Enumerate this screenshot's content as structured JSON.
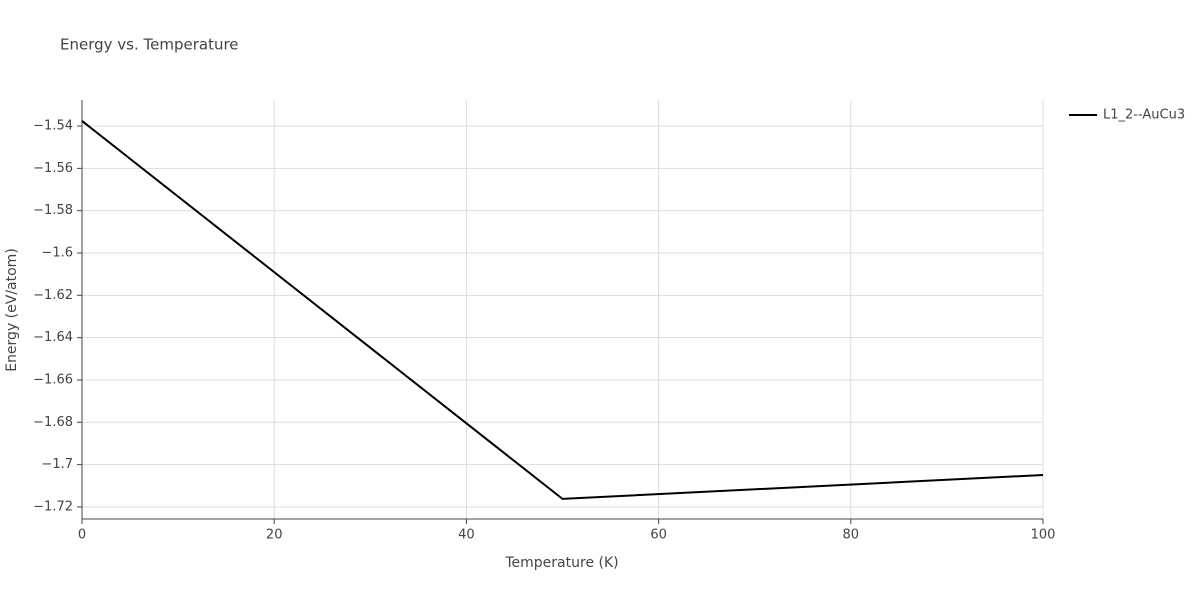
{
  "chart_data": {
    "type": "line",
    "title": "Energy vs. Temperature",
    "x_label": "Temperature (K)",
    "y_label": "Energy (eV/atom)",
    "x": [
      0,
      50,
      100
    ],
    "series": [
      {
        "name": "L1_2--AuCu3",
        "color": "#000000",
        "values": [
          -1.5376,
          -1.7162,
          -1.7049
        ]
      }
    ],
    "xlim": [
      0,
      100
    ],
    "xticks": [
      0,
      20,
      40,
      60,
      80,
      100
    ],
    "ylim": [
      -1.7257,
      -1.5277
    ],
    "yticks": [
      {
        "value": -1.72,
        "label": "−1.72"
      },
      {
        "value": -1.7,
        "label": "−1.7"
      },
      {
        "value": -1.68,
        "label": "−1.68"
      },
      {
        "value": -1.66,
        "label": "−1.66"
      },
      {
        "value": -1.64,
        "label": "−1.64"
      },
      {
        "value": -1.62,
        "label": "−1.62"
      },
      {
        "value": -1.6,
        "label": "−1.6"
      },
      {
        "value": -1.58,
        "label": "−1.58"
      },
      {
        "value": -1.56,
        "label": "−1.56"
      },
      {
        "value": -1.54,
        "label": "−1.54"
      }
    ],
    "grid": true,
    "legend": "top-right"
  }
}
